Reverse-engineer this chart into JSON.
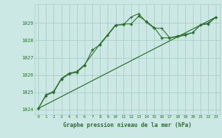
{
  "title": "Graphe pression niveau de la mer (hPa)",
  "background_color": "#cce8e4",
  "grid_color": "#a8ccc8",
  "line_color": "#2a6e2a",
  "marker_color": "#2a6e2a",
  "xlim": [
    -0.5,
    23.5
  ],
  "ylim": [
    1023.7,
    1030.1
  ],
  "yticks": [
    1024,
    1025,
    1026,
    1027,
    1028,
    1029
  ],
  "xticks": [
    0,
    1,
    2,
    3,
    4,
    5,
    6,
    7,
    8,
    9,
    10,
    11,
    12,
    13,
    14,
    15,
    16,
    17,
    18,
    19,
    20,
    21,
    22,
    23
  ],
  "series1_x": [
    0,
    1,
    2,
    3,
    4,
    5,
    6,
    7,
    8,
    9,
    10,
    11,
    12,
    13,
    14,
    15,
    16,
    17,
    18,
    19,
    20,
    21,
    22,
    23
  ],
  "series1_y": [
    1024.05,
    1024.8,
    1025.0,
    1025.75,
    1026.05,
    1026.15,
    1026.55,
    1027.45,
    1027.75,
    1028.3,
    1028.85,
    1028.95,
    1028.95,
    1029.4,
    1029.1,
    1028.75,
    1028.15,
    1028.15,
    1028.25,
    1028.35,
    1028.45,
    1028.9,
    1028.95,
    1029.35
  ],
  "series2_x": [
    0,
    1,
    2,
    3,
    4,
    5,
    6,
    8,
    10,
    11,
    12,
    13,
    14,
    15,
    16,
    17,
    18,
    19,
    20,
    21,
    22,
    23
  ],
  "series2_y": [
    1024.05,
    1024.85,
    1025.05,
    1025.8,
    1026.1,
    1026.2,
    1026.6,
    1027.8,
    1028.9,
    1028.9,
    1029.35,
    1029.55,
    1029.05,
    1028.7,
    1028.7,
    1028.15,
    1028.2,
    1028.3,
    1028.45,
    1028.9,
    1029.0,
    1029.35
  ],
  "series3_x": [
    0,
    23
  ],
  "series3_y": [
    1024.05,
    1029.35
  ]
}
